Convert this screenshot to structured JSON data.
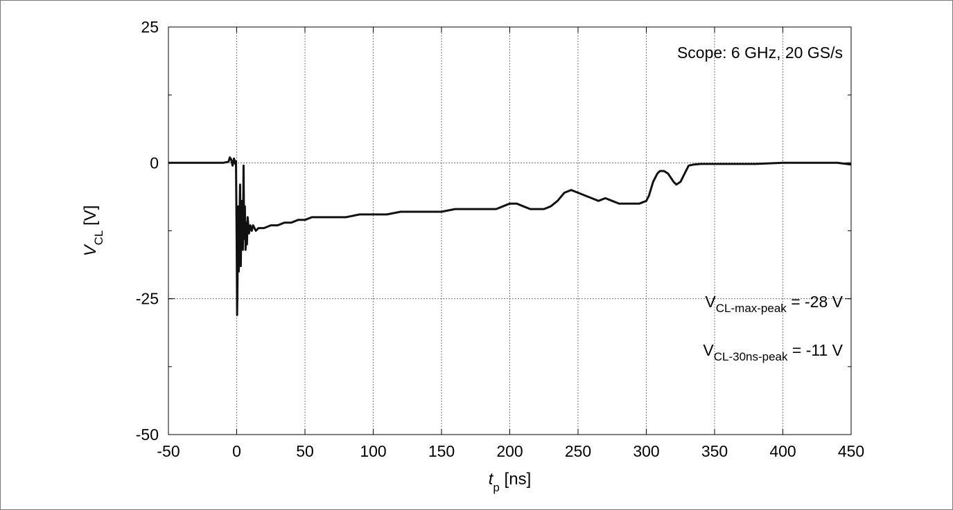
{
  "chart_data": {
    "type": "line",
    "title": "",
    "xlabel_main": "t",
    "xlabel_sub": "p",
    "xlabel_unit": " [ns]",
    "ylabel_main": "V",
    "ylabel_sub": "CL",
    "ylabel_unit": " [V]",
    "xlim": [
      -50,
      450
    ],
    "ylim": [
      -50,
      25
    ],
    "xticks": [
      -50,
      0,
      50,
      100,
      150,
      200,
      250,
      300,
      350,
      400,
      450
    ],
    "yticks": [
      -50,
      -25,
      0,
      25
    ],
    "grid": true,
    "colors": {
      "line": "#111111",
      "grid": "#555555"
    },
    "series": [
      {
        "x": [
          -50,
          -40,
          -30,
          -20,
          -10,
          -6,
          -5,
          -4,
          -3,
          -2,
          -1,
          -0.5,
          0,
          0.3,
          0.6,
          1,
          1.5,
          2,
          2.5,
          3,
          3.5,
          4,
          4.5,
          5,
          5.5,
          6,
          6.5,
          7,
          7.5,
          8,
          9,
          10,
          11,
          12,
          14,
          16,
          18,
          20,
          25,
          30,
          35,
          40,
          45,
          50,
          55,
          60,
          70,
          80,
          90,
          100,
          110,
          120,
          130,
          140,
          150,
          160,
          170,
          180,
          190,
          195,
          200,
          205,
          210,
          215,
          220,
          225,
          230,
          235,
          240,
          245,
          250,
          255,
          260,
          265,
          270,
          275,
          280,
          285,
          290,
          295,
          300,
          302,
          305,
          308,
          310,
          313,
          316,
          320,
          322,
          325,
          328,
          331,
          335,
          340,
          350,
          360,
          380,
          400,
          420,
          440,
          450
        ],
        "y": [
          0,
          0,
          0,
          0,
          0,
          0.2,
          1,
          0.6,
          -0.5,
          0.8,
          -0.2,
          0.3,
          -15,
          -28,
          -22,
          -8,
          -20,
          -12,
          -4,
          -19,
          -10,
          -7,
          -16,
          -0.5,
          -14,
          -8,
          -16,
          -11,
          -15,
          -10,
          -13,
          -11.5,
          -12.5,
          -11.5,
          -12.5,
          -12,
          -12,
          -12,
          -11.5,
          -11.5,
          -11,
          -11,
          -10.5,
          -10.5,
          -10,
          -10,
          -10,
          -10,
          -9.5,
          -9.5,
          -9.5,
          -9,
          -9,
          -9,
          -9,
          -8.5,
          -8.5,
          -8.5,
          -8.5,
          -8,
          -7.5,
          -7.5,
          -8,
          -8.5,
          -8.5,
          -8.5,
          -8,
          -7,
          -5.5,
          -5,
          -5.5,
          -6,
          -6.5,
          -7,
          -6.5,
          -7,
          -7.5,
          -7.5,
          -7.5,
          -7.5,
          -7,
          -6,
          -3.5,
          -2,
          -1.5,
          -1.5,
          -2,
          -3.5,
          -4,
          -3.5,
          -2,
          -0.5,
          -0.3,
          -0.2,
          -0.2,
          -0.2,
          -0.2,
          0,
          0,
          0,
          -0.3
        ]
      }
    ],
    "annotations": [
      {
        "main": "Scope: 6 GHz, 20 GS/s",
        "sub": "",
        "tail": ""
      },
      {
        "main": "V",
        "sub": "CL-max-peak",
        "tail": " = -28 V"
      },
      {
        "main": "V",
        "sub": "CL-30ns-peak",
        "tail": " = -11 V"
      }
    ]
  }
}
